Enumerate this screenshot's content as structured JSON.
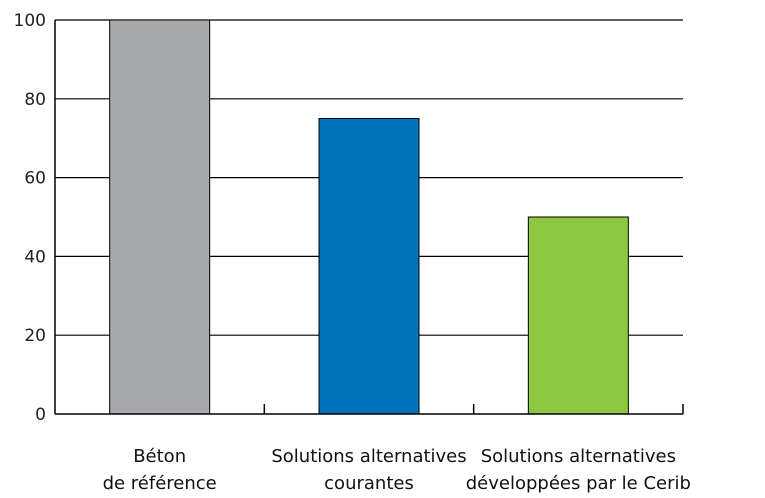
{
  "chart_data": {
    "type": "bar",
    "categories": [
      [
        "Béton",
        "de référence"
      ],
      [
        "Solutions alternatives",
        "courantes"
      ],
      [
        "Solutions alternatives",
        "développées par le Cerib"
      ]
    ],
    "values": [
      100,
      75,
      50
    ],
    "colors": [
      "#a7a9ac",
      "#0071bc",
      "#8dc63f"
    ],
    "ylim": [
      0,
      100
    ],
    "yticks": [
      0,
      20,
      40,
      60,
      80,
      100
    ],
    "grid": true
  }
}
